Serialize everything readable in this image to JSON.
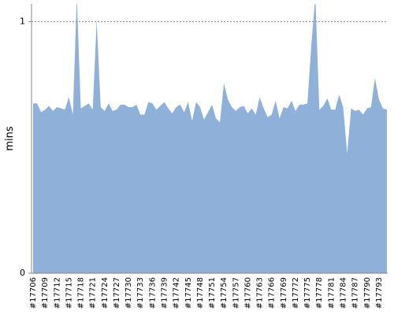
{
  "chart_data": {
    "type": "area",
    "y_label": "mins",
    "categories": [
      "#17706",
      null,
      null,
      "#17709",
      null,
      null,
      "#17712",
      null,
      null,
      "#17715",
      null,
      null,
      "#17718",
      null,
      null,
      "#17721",
      null,
      null,
      "#17724",
      null,
      null,
      "#17727",
      null,
      null,
      "#17730",
      null,
      null,
      "#17733",
      null,
      null,
      "#17736",
      null,
      null,
      "#17739",
      null,
      null,
      "#17742",
      null,
      null,
      "#17745",
      null,
      null,
      "#17748",
      null,
      null,
      "#17751",
      null,
      null,
      "#17754",
      null,
      null,
      "#17757",
      null,
      null,
      "#17760",
      null,
      null,
      "#17763",
      null,
      null,
      "#17766",
      null,
      null,
      "#17769",
      null,
      null,
      "#17772",
      null,
      null,
      "#17775",
      null,
      null,
      "#17778",
      null,
      null,
      "#17781",
      null,
      null,
      "#17784",
      null,
      null,
      "#17787",
      null,
      null,
      "#17790",
      null,
      null,
      "#17793",
      null,
      null
    ],
    "values": [
      0.675,
      0.675,
      0.64,
      0.65,
      0.665,
      0.645,
      0.66,
      0.655,
      0.65,
      0.7,
      0.63,
      1.1,
      0.655,
      0.665,
      0.675,
      0.65,
      1.005,
      0.66,
      0.645,
      0.675,
      0.645,
      0.65,
      0.67,
      0.67,
      0.66,
      0.66,
      0.67,
      0.63,
      0.63,
      0.68,
      0.675,
      0.65,
      0.665,
      0.68,
      0.655,
      0.635,
      0.66,
      0.67,
      0.64,
      0.68,
      0.605,
      0.68,
      0.66,
      0.61,
      0.64,
      0.67,
      0.615,
      0.6,
      0.755,
      0.69,
      0.66,
      0.645,
      0.66,
      0.665,
      0.635,
      0.655,
      0.63,
      0.7,
      0.655,
      0.62,
      0.63,
      0.685,
      0.615,
      0.66,
      0.655,
      0.685,
      0.645,
      0.67,
      0.67,
      0.675,
      0.91,
      1.1,
      0.65,
      0.665,
      0.695,
      0.65,
      0.65,
      0.71,
      0.66,
      0.475,
      0.655,
      0.645,
      0.65,
      0.63,
      0.655,
      0.66,
      0.775,
      0.69,
      0.655,
      0.65
    ],
    "color": "#8fb0d9",
    "ylim": [
      0,
      1.07
    ],
    "yticks": [
      0,
      1
    ],
    "grid": true
  }
}
